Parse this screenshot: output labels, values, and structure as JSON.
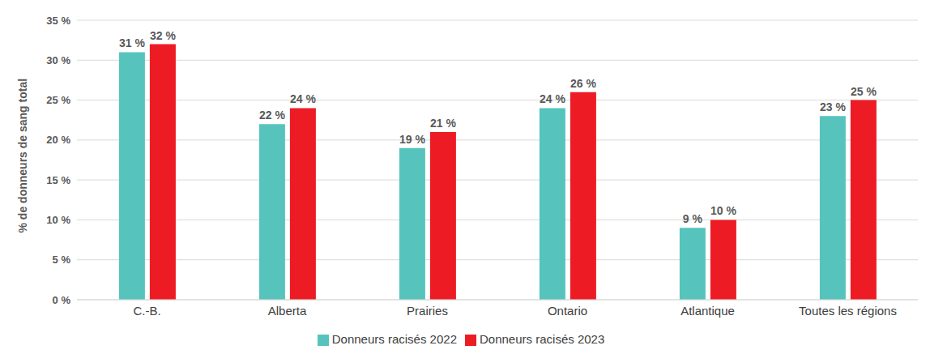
{
  "chart_data": {
    "type": "bar",
    "y_label": "% de donneurs de sang total",
    "categories": [
      "C.-B.",
      "Alberta",
      "Prairies",
      "Ontario",
      "Atlantique",
      "Toutes les régions"
    ],
    "series": [
      {
        "name": "Donneurs racisés 2022",
        "color": "#56c4bc",
        "values": [
          31,
          22,
          19,
          24,
          9,
          23
        ],
        "value_labels": [
          "31 %",
          "22 %",
          "19 %",
          "24 %",
          "9 %",
          "23 %"
        ]
      },
      {
        "name": "Donneurs racisés 2023",
        "color": "#ed1c24",
        "values": [
          32,
          24,
          21,
          26,
          10,
          25
        ],
        "value_labels": [
          "32 %",
          "24 %",
          "21 %",
          "26 %",
          "10 %",
          "25 %"
        ]
      }
    ],
    "ylim": [
      0,
      35
    ],
    "yticks": [
      {
        "value": 0,
        "label": "0 %"
      },
      {
        "value": 5,
        "label": "5 %"
      },
      {
        "value": 10,
        "label": "10 %"
      },
      {
        "value": 15,
        "label": "15 %"
      },
      {
        "value": 20,
        "label": "20 %"
      },
      {
        "value": 25,
        "label": "25 %"
      },
      {
        "value": 30,
        "label": "30 %"
      },
      {
        "value": 35,
        "label": "35 %"
      }
    ],
    "grid": true,
    "legend": "bottom",
    "data_labels": true
  }
}
